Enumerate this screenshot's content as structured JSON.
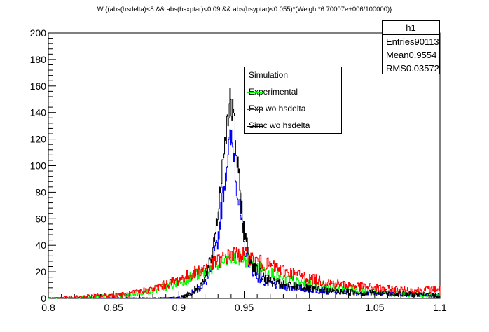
{
  "chart_data": {
    "type": "histogram",
    "title": "W {(abs(hsdelta)<8 && abs(hsxptar)<0.09 && abs(hsyptar)<0.055)*(Weight*6.70007e+006/100000)}",
    "xlim": [
      0.8,
      1.1
    ],
    "ylim": [
      0,
      200
    ],
    "xticks": [
      "0.8",
      "0.85",
      "0.9",
      "0.95",
      "1",
      "1.05",
      "1.1"
    ],
    "yticks": [
      "0",
      "20",
      "40",
      "60",
      "80",
      "100",
      "120",
      "140",
      "160",
      "180",
      "200"
    ],
    "series": [
      {
        "name": "Simulation",
        "color": "#0000ff",
        "points": [
          [
            0.8,
            0
          ],
          [
            0.88,
            0
          ],
          [
            0.9,
            0.5
          ],
          [
            0.91,
            4
          ],
          [
            0.92,
            11
          ],
          [
            0.925,
            20
          ],
          [
            0.93,
            45
          ],
          [
            0.935,
            88
          ],
          [
            0.938,
            112
          ],
          [
            0.94,
            120
          ],
          [
            0.942,
            110
          ],
          [
            0.945,
            80
          ],
          [
            0.95,
            40
          ],
          [
            0.955,
            24
          ],
          [
            0.96,
            17
          ],
          [
            0.965,
            13
          ],
          [
            0.97,
            11
          ],
          [
            0.98,
            9
          ],
          [
            0.99,
            8
          ],
          [
            1.0,
            7
          ],
          [
            1.02,
            5
          ],
          [
            1.05,
            4
          ],
          [
            1.08,
            3
          ],
          [
            1.1,
            2
          ]
        ]
      },
      {
        "name": "Experimental",
        "color": "#00ff00",
        "points": [
          [
            0.8,
            0
          ],
          [
            0.82,
            0.5
          ],
          [
            0.84,
            1.5
          ],
          [
            0.86,
            2.5
          ],
          [
            0.88,
            6
          ],
          [
            0.9,
            12
          ],
          [
            0.92,
            20
          ],
          [
            0.93,
            25
          ],
          [
            0.94,
            30
          ],
          [
            0.95,
            30
          ],
          [
            0.96,
            24
          ],
          [
            0.98,
            15
          ],
          [
            1.0,
            10
          ],
          [
            1.02,
            8
          ],
          [
            1.04,
            6
          ],
          [
            1.06,
            4
          ],
          [
            1.08,
            3
          ],
          [
            1.1,
            2
          ]
        ]
      },
      {
        "name": "Exp wo hsdelta",
        "color": "#ff0000",
        "points": [
          [
            0.8,
            0
          ],
          [
            0.82,
            1
          ],
          [
            0.84,
            2
          ],
          [
            0.86,
            3
          ],
          [
            0.88,
            7
          ],
          [
            0.9,
            14
          ],
          [
            0.92,
            23
          ],
          [
            0.93,
            28
          ],
          [
            0.94,
            33
          ],
          [
            0.95,
            33
          ],
          [
            0.96,
            28
          ],
          [
            0.98,
            21
          ],
          [
            1.0,
            15
          ],
          [
            1.02,
            11
          ],
          [
            1.04,
            9
          ],
          [
            1.06,
            7
          ],
          [
            1.08,
            6
          ],
          [
            1.1,
            7
          ]
        ]
      },
      {
        "name": "Simc wo hsdelta",
        "color": "#000000",
        "points": [
          [
            0.8,
            0
          ],
          [
            0.88,
            0
          ],
          [
            0.9,
            0.5
          ],
          [
            0.91,
            4
          ],
          [
            0.92,
            14
          ],
          [
            0.925,
            30
          ],
          [
            0.93,
            65
          ],
          [
            0.935,
            118
          ],
          [
            0.938,
            143
          ],
          [
            0.94,
            147
          ],
          [
            0.942,
            135
          ],
          [
            0.945,
            100
          ],
          [
            0.95,
            50
          ],
          [
            0.955,
            28
          ],
          [
            0.96,
            20
          ],
          [
            0.965,
            16
          ],
          [
            0.97,
            13
          ],
          [
            0.98,
            10
          ],
          [
            0.99,
            9
          ],
          [
            1.0,
            7
          ],
          [
            1.02,
            5
          ],
          [
            1.05,
            4
          ],
          [
            1.08,
            3
          ],
          [
            1.1,
            2
          ]
        ]
      }
    ],
    "legend": [
      "Simulation",
      "Experimental",
      "Exp wo hsdelta",
      "Simc wo hsdelta"
    ],
    "legend_position": "top-center"
  },
  "stats_box": {
    "name": "h1",
    "rows": [
      {
        "label": "Entries",
        "value": "90113"
      },
      {
        "label": "Mean",
        "value": "0.9554"
      },
      {
        "label": "RMS",
        "value": "0.03572"
      }
    ]
  }
}
